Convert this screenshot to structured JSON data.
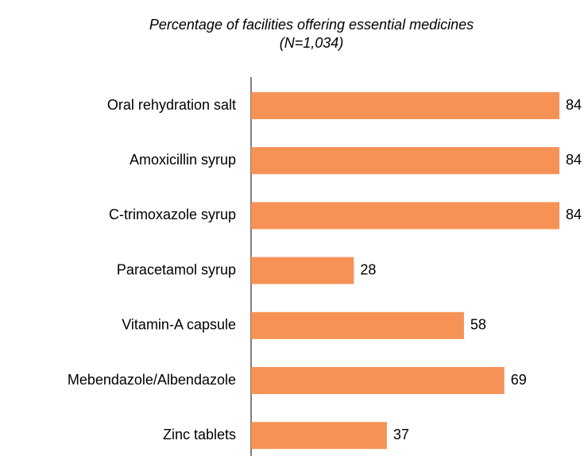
{
  "chart_data": {
    "type": "bar",
    "orientation": "horizontal",
    "title": "Percentage of facilities offering essential medicines",
    "subtitle": "(N=1,034)",
    "categories": [
      "Oral rehydration salt",
      "Amoxicillin syrup",
      "C-trimoxazole syrup",
      "Paracetamol syrup",
      "Vitamin-A capsule",
      "Mebendazole/Albendazole",
      "Zinc tablets"
    ],
    "values": [
      84,
      84,
      84,
      28,
      58,
      69,
      37
    ],
    "color": "#f79256"
  }
}
